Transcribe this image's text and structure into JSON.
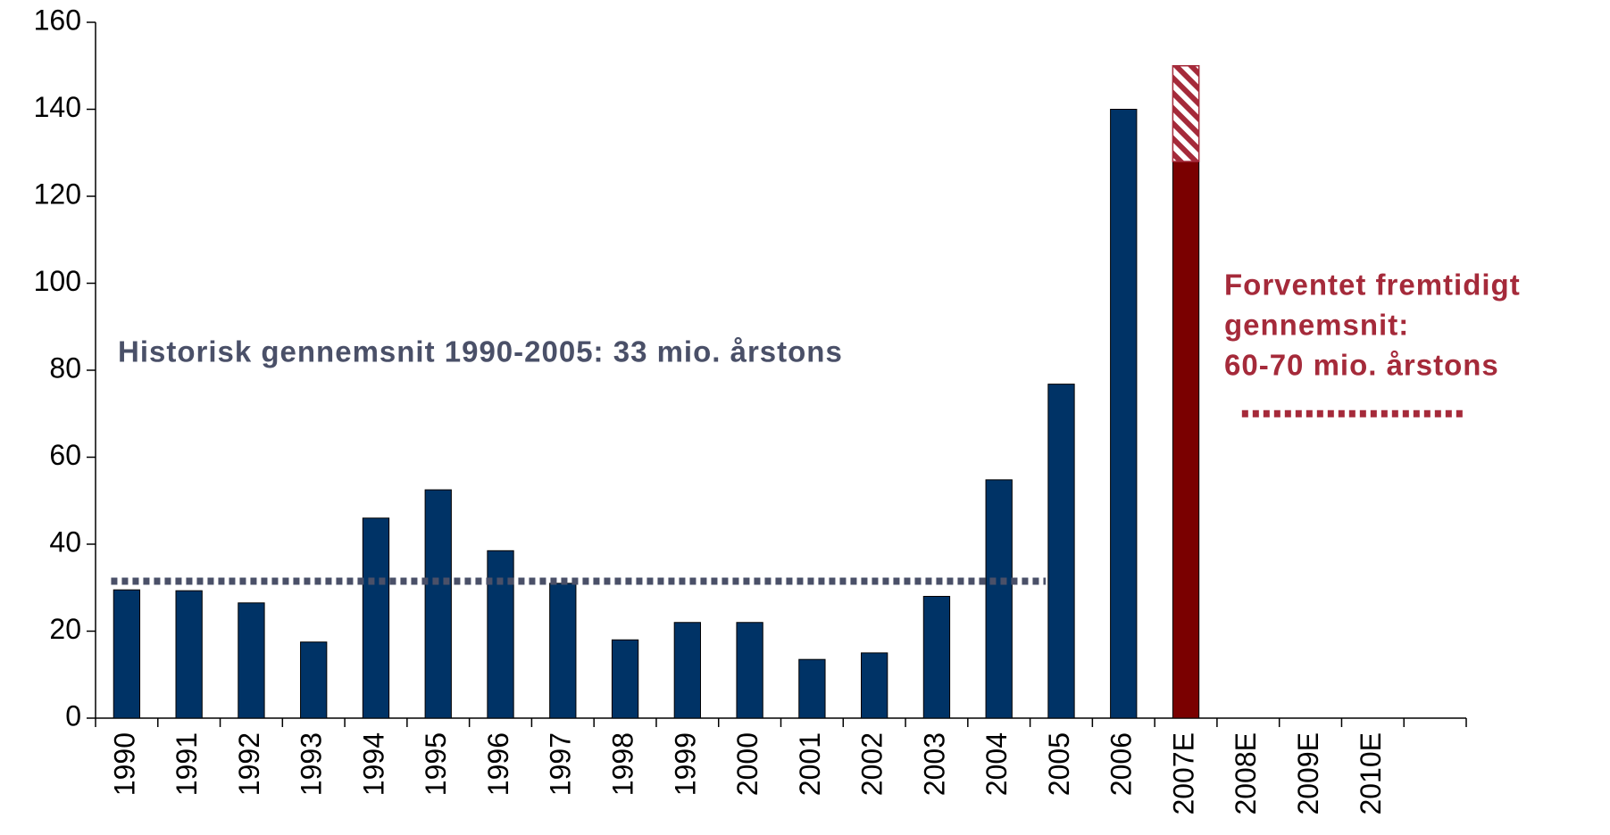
{
  "chart_data": {
    "type": "bar",
    "categories": [
      "1990",
      "1991",
      "1992",
      "1993",
      "1994",
      "1995",
      "1996",
      "1997",
      "1998",
      "1999",
      "2000",
      "2001",
      "2002",
      "2003",
      "2004",
      "2005",
      "2006",
      "2007E",
      "2008E",
      "2009E",
      "2010E",
      null
    ],
    "series": [
      {
        "colors": [
          "#003366",
          "#003366",
          "#003366",
          "#003366",
          "#003366",
          "#003366",
          "#003366",
          "#003366",
          "#003366",
          "#003366",
          "#003366",
          "#003366",
          "#003366",
          "#003366",
          "#003366",
          "#003366",
          "#003366",
          "#7a0000",
          null,
          null,
          null,
          null
        ],
        "values": [
          29.5,
          29.3,
          26.5,
          17.5,
          46,
          52.5,
          38.5,
          31,
          18,
          22,
          22,
          13.5,
          15,
          28,
          54.8,
          76.8,
          140,
          128,
          null,
          null,
          null,
          null
        ]
      },
      {
        "color": "#a52a3a",
        "pattern": "hatched",
        "values": [
          null,
          null,
          null,
          null,
          null,
          null,
          null,
          null,
          null,
          null,
          null,
          null,
          null,
          null,
          null,
          null,
          null,
          22,
          null,
          null,
          null,
          null
        ]
      }
    ],
    "ylim": [
      0,
      160
    ],
    "yticks": [
      0,
      20,
      40,
      60,
      80,
      100,
      120,
      140,
      160
    ],
    "grid": false,
    "annotations": [
      {
        "lines": [
          "Historisk gennemsnit 1990-2005: 33 mio. årstons"
        ],
        "color": "#4a5068",
        "value": 31.5,
        "from": "1990",
        "to": "2005"
      },
      {
        "lines": [
          "Forventet fremtidigt",
          "gennemsnit:",
          "60-70 mio. årstons"
        ],
        "color": "#a52a3a",
        "value": 70,
        "from": "2008E",
        "to": "2010E"
      }
    ]
  }
}
